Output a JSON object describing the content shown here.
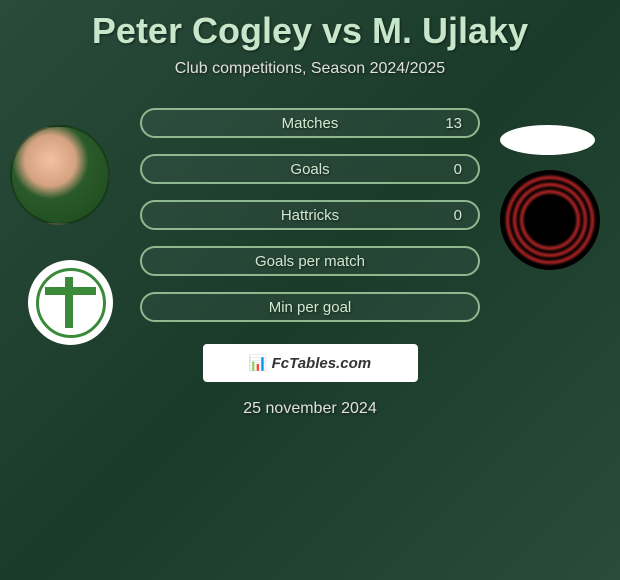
{
  "header": {
    "title": "Peter Cogley vs M. Ujlaky",
    "subtitle": "Club competitions, Season 2024/2025"
  },
  "stats": [
    {
      "label": "Matches",
      "value": "13"
    },
    {
      "label": "Goals",
      "value": "0"
    },
    {
      "label": "Hattricks",
      "value": "0"
    },
    {
      "label": "Goals per match",
      "value": ""
    },
    {
      "label": "Min per goal",
      "value": ""
    }
  ],
  "watermark": {
    "text": "FcTables.com"
  },
  "footer": {
    "date": "25 november 2024"
  },
  "style": {
    "title_color": "#c8e6c9",
    "text_color": "#e0e0e0",
    "pill_border": "#8fb88f",
    "pill_text": "#d0e8d0",
    "background_gradient": [
      "#2a4a3a",
      "#1a3a2a"
    ]
  }
}
